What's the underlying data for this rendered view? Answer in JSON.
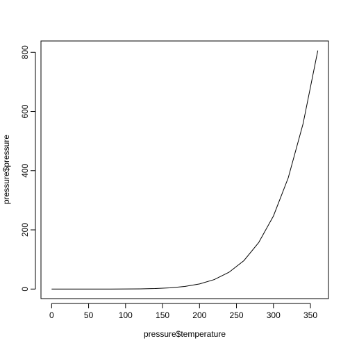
{
  "chart_data": {
    "type": "line",
    "x_label": "pressure$temperature",
    "y_label": "pressure$pressure",
    "x": [
      0,
      20,
      40,
      60,
      80,
      100,
      120,
      140,
      160,
      180,
      200,
      220,
      240,
      260,
      280,
      300,
      320,
      340,
      360
    ],
    "series": [
      {
        "color": "#000000",
        "values": [
          0.0002,
          0.0012,
          0.006,
          0.03,
          0.09,
          0.27,
          0.75,
          1.85,
          4.2,
          8.8,
          17.3,
          32.1,
          57,
          96,
          157,
          247,
          376,
          558,
          806
        ]
      }
    ],
    "xlim": [
      -14.4,
      374.4
    ],
    "ylim": [
      -32.24,
      838.24
    ],
    "xticks": [
      0,
      50,
      100,
      150,
      200,
      250,
      300,
      350
    ],
    "yticks": [
      0,
      200,
      400,
      600,
      800
    ]
  }
}
